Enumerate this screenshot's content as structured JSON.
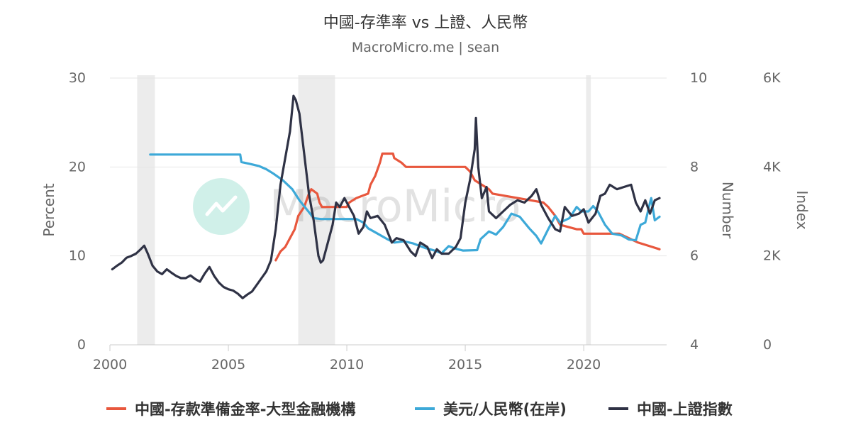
{
  "header": {
    "title": "中國-存準率 vs 上證、人民幣",
    "subtitle": "MacroMicro.me | sean"
  },
  "watermark": {
    "text": "MacroMicro"
  },
  "chart_data": {
    "type": "line",
    "xlim": [
      2000.0,
      2023.5
    ],
    "x_ticks": [
      2000,
      2005,
      2010,
      2015,
      2020
    ],
    "axes": {
      "left": {
        "label": "Percent",
        "range": [
          0,
          30
        ],
        "ticks": [
          "0",
          "10",
          "20",
          "30"
        ]
      },
      "right1": {
        "label": "Number",
        "range": [
          4,
          10
        ],
        "ticks": [
          "4",
          "6",
          "8",
          "10"
        ]
      },
      "right2": {
        "label": "Index",
        "range": [
          0,
          6000
        ],
        "ticks": [
          "0",
          "2K",
          "4K",
          "6K"
        ]
      }
    },
    "grid": true,
    "legend_position": "bottom",
    "shaded_periods": [
      [
        2001.15,
        2001.9
      ],
      [
        2007.95,
        2009.5
      ],
      [
        2020.1,
        2020.3
      ]
    ],
    "series": [
      {
        "name": "中國-存款準備金率-大型金融機構",
        "axis": "left",
        "color": "#e8573d",
        "points": [
          [
            2007.0,
            9.5
          ],
          [
            2007.2,
            10.5
          ],
          [
            2007.4,
            11.0
          ],
          [
            2007.6,
            12.0
          ],
          [
            2007.8,
            13.0
          ],
          [
            2007.95,
            14.5
          ],
          [
            2008.2,
            15.5
          ],
          [
            2008.4,
            17.0
          ],
          [
            2008.5,
            17.5
          ],
          [
            2008.75,
            17.0
          ],
          [
            2008.85,
            16.0
          ],
          [
            2008.95,
            15.5
          ],
          [
            2010.0,
            15.5
          ],
          [
            2010.1,
            16.0
          ],
          [
            2010.4,
            16.5
          ],
          [
            2010.9,
            17.0
          ],
          [
            2011.0,
            18.0
          ],
          [
            2011.2,
            19.0
          ],
          [
            2011.4,
            20.5
          ],
          [
            2011.5,
            21.5
          ],
          [
            2011.95,
            21.5
          ],
          [
            2012.0,
            21.0
          ],
          [
            2012.3,
            20.5
          ],
          [
            2012.5,
            20.0
          ],
          [
            2015.0,
            20.0
          ],
          [
            2015.2,
            19.5
          ],
          [
            2015.4,
            18.5
          ],
          [
            2015.7,
            18.0
          ],
          [
            2016.0,
            17.5
          ],
          [
            2016.15,
            17.0
          ],
          [
            2018.3,
            16.0
          ],
          [
            2018.5,
            15.5
          ],
          [
            2018.8,
            14.5
          ],
          [
            2019.0,
            13.5
          ],
          [
            2019.7,
            13.0
          ],
          [
            2019.9,
            13.0
          ],
          [
            2020.0,
            12.5
          ],
          [
            2021.5,
            12.5
          ],
          [
            2021.9,
            12.0
          ],
          [
            2022.3,
            11.5
          ],
          [
            2022.9,
            11.0
          ],
          [
            2023.2,
            10.75
          ]
        ]
      },
      {
        "name": "美元/人民幣(在岸)",
        "axis": "right1",
        "color": "#3da9d8",
        "points": [
          [
            2001.7,
            8.28
          ],
          [
            2005.5,
            8.28
          ],
          [
            2005.55,
            8.11
          ],
          [
            2005.9,
            8.07
          ],
          [
            2006.3,
            8.02
          ],
          [
            2006.6,
            7.95
          ],
          [
            2006.9,
            7.85
          ],
          [
            2007.3,
            7.7
          ],
          [
            2007.7,
            7.5
          ],
          [
            2008.0,
            7.25
          ],
          [
            2008.3,
            7.05
          ],
          [
            2008.6,
            6.85
          ],
          [
            2008.9,
            6.83
          ],
          [
            2010.4,
            6.83
          ],
          [
            2010.7,
            6.75
          ],
          [
            2010.9,
            6.62
          ],
          [
            2011.3,
            6.5
          ],
          [
            2011.7,
            6.38
          ],
          [
            2012.0,
            6.3
          ],
          [
            2012.4,
            6.33
          ],
          [
            2012.8,
            6.28
          ],
          [
            2013.3,
            6.18
          ],
          [
            2013.7,
            6.12
          ],
          [
            2014.0,
            6.06
          ],
          [
            2014.3,
            6.22
          ],
          [
            2014.6,
            6.16
          ],
          [
            2014.9,
            6.12
          ],
          [
            2015.5,
            6.13
          ],
          [
            2015.65,
            6.38
          ],
          [
            2016.0,
            6.55
          ],
          [
            2016.3,
            6.48
          ],
          [
            2016.6,
            6.65
          ],
          [
            2016.95,
            6.95
          ],
          [
            2017.3,
            6.88
          ],
          [
            2017.7,
            6.62
          ],
          [
            2018.0,
            6.45
          ],
          [
            2018.2,
            6.28
          ],
          [
            2018.5,
            6.6
          ],
          [
            2018.8,
            6.9
          ],
          [
            2019.0,
            6.75
          ],
          [
            2019.4,
            6.85
          ],
          [
            2019.7,
            7.1
          ],
          [
            2019.9,
            7.0
          ],
          [
            2020.2,
            7.0
          ],
          [
            2020.4,
            7.12
          ],
          [
            2020.6,
            7.0
          ],
          [
            2020.9,
            6.7
          ],
          [
            2021.2,
            6.5
          ],
          [
            2021.6,
            6.46
          ],
          [
            2021.9,
            6.37
          ],
          [
            2022.2,
            6.35
          ],
          [
            2022.4,
            6.7
          ],
          [
            2022.6,
            6.75
          ],
          [
            2022.8,
            7.2
          ],
          [
            2022.85,
            7.3
          ],
          [
            2023.0,
            6.8
          ],
          [
            2023.2,
            6.88
          ]
        ]
      },
      {
        "name": "中國-上證指數",
        "axis": "right2",
        "color": "#2f3245",
        "points": [
          [
            2000.1,
            1700
          ],
          [
            2000.3,
            1780
          ],
          [
            2000.5,
            1850
          ],
          [
            2000.7,
            1960
          ],
          [
            2000.9,
            2000
          ],
          [
            2001.1,
            2050
          ],
          [
            2001.3,
            2150
          ],
          [
            2001.45,
            2230
          ],
          [
            2001.6,
            2050
          ],
          [
            2001.8,
            1780
          ],
          [
            2002.0,
            1650
          ],
          [
            2002.2,
            1590
          ],
          [
            2002.4,
            1700
          ],
          [
            2002.6,
            1620
          ],
          [
            2002.8,
            1550
          ],
          [
            2003.0,
            1500
          ],
          [
            2003.2,
            1500
          ],
          [
            2003.4,
            1560
          ],
          [
            2003.6,
            1480
          ],
          [
            2003.8,
            1420
          ],
          [
            2004.0,
            1600
          ],
          [
            2004.2,
            1750
          ],
          [
            2004.4,
            1550
          ],
          [
            2004.6,
            1400
          ],
          [
            2004.8,
            1300
          ],
          [
            2005.0,
            1250
          ],
          [
            2005.2,
            1220
          ],
          [
            2005.4,
            1150
          ],
          [
            2005.6,
            1050
          ],
          [
            2005.8,
            1130
          ],
          [
            2006.0,
            1200
          ],
          [
            2006.2,
            1350
          ],
          [
            2006.4,
            1500
          ],
          [
            2006.6,
            1650
          ],
          [
            2006.8,
            1900
          ],
          [
            2007.0,
            2600
          ],
          [
            2007.2,
            3600
          ],
          [
            2007.4,
            4200
          ],
          [
            2007.6,
            4800
          ],
          [
            2007.75,
            5600
          ],
          [
            2007.85,
            5500
          ],
          [
            2008.0,
            5200
          ],
          [
            2008.2,
            4300
          ],
          [
            2008.4,
            3400
          ],
          [
            2008.6,
            2800
          ],
          [
            2008.8,
            2000
          ],
          [
            2008.9,
            1850
          ],
          [
            2009.0,
            1900
          ],
          [
            2009.2,
            2300
          ],
          [
            2009.4,
            2700
          ],
          [
            2009.55,
            3200
          ],
          [
            2009.7,
            3100
          ],
          [
            2009.9,
            3300
          ],
          [
            2010.1,
            3100
          ],
          [
            2010.3,
            2900
          ],
          [
            2010.5,
            2500
          ],
          [
            2010.7,
            2650
          ],
          [
            2010.85,
            3000
          ],
          [
            2011.0,
            2850
          ],
          [
            2011.3,
            2900
          ],
          [
            2011.6,
            2700
          ],
          [
            2011.9,
            2300
          ],
          [
            2012.1,
            2400
          ],
          [
            2012.4,
            2350
          ],
          [
            2012.7,
            2100
          ],
          [
            2012.9,
            2000
          ],
          [
            2013.1,
            2300
          ],
          [
            2013.4,
            2200
          ],
          [
            2013.6,
            1950
          ],
          [
            2013.8,
            2150
          ],
          [
            2014.0,
            2050
          ],
          [
            2014.3,
            2050
          ],
          [
            2014.6,
            2200
          ],
          [
            2014.8,
            2400
          ],
          [
            2015.0,
            3200
          ],
          [
            2015.2,
            3700
          ],
          [
            2015.4,
            4400
          ],
          [
            2015.45,
            5100
          ],
          [
            2015.55,
            4000
          ],
          [
            2015.7,
            3300
          ],
          [
            2015.9,
            3550
          ],
          [
            2016.0,
            3000
          ],
          [
            2016.3,
            2850
          ],
          [
            2016.6,
            3000
          ],
          [
            2016.9,
            3150
          ],
          [
            2017.2,
            3250
          ],
          [
            2017.5,
            3200
          ],
          [
            2017.8,
            3350
          ],
          [
            2018.0,
            3500
          ],
          [
            2018.2,
            3150
          ],
          [
            2018.5,
            2850
          ],
          [
            2018.8,
            2600
          ],
          [
            2019.0,
            2550
          ],
          [
            2019.2,
            3100
          ],
          [
            2019.5,
            2900
          ],
          [
            2019.8,
            2950
          ],
          [
            2020.0,
            3050
          ],
          [
            2020.2,
            2750
          ],
          [
            2020.5,
            2950
          ],
          [
            2020.7,
            3350
          ],
          [
            2020.9,
            3400
          ],
          [
            2021.1,
            3600
          ],
          [
            2021.4,
            3500
          ],
          [
            2021.7,
            3550
          ],
          [
            2022.0,
            3600
          ],
          [
            2022.2,
            3200
          ],
          [
            2022.4,
            3000
          ],
          [
            2022.6,
            3250
          ],
          [
            2022.8,
            2950
          ],
          [
            2023.0,
            3250
          ],
          [
            2023.2,
            3300
          ]
        ]
      }
    ]
  }
}
